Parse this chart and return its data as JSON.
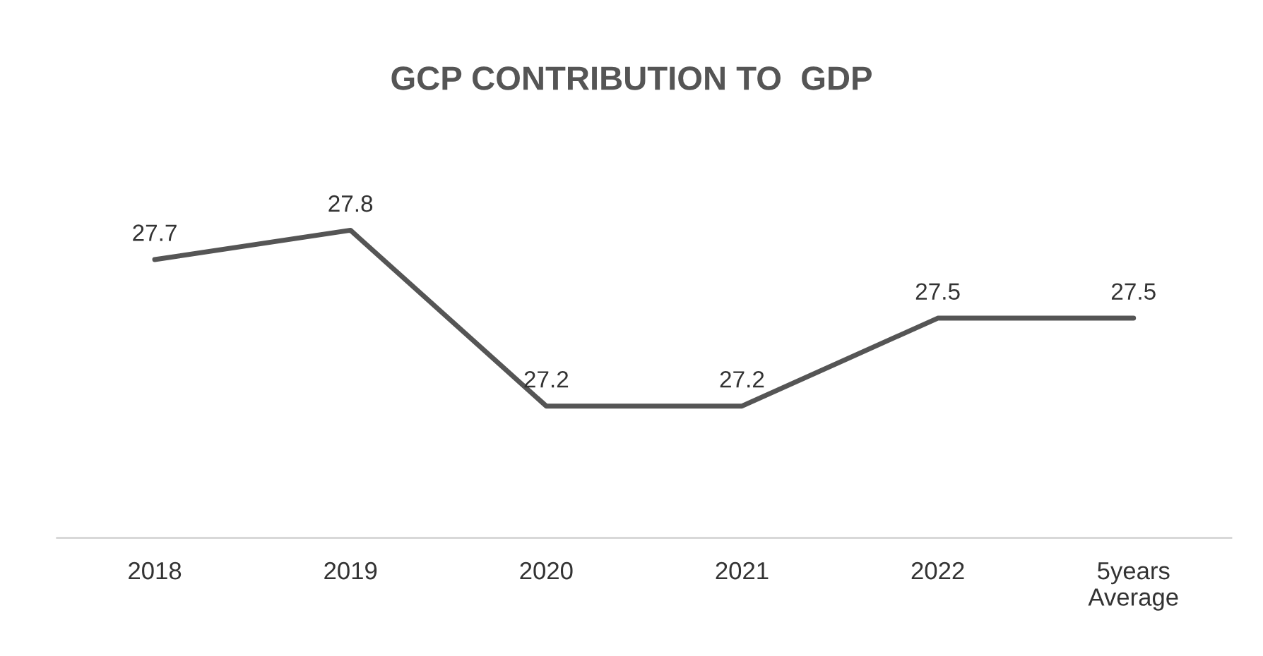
{
  "chart_data": {
    "type": "line",
    "title": "GCP CONTRIBUTION TO  GDP",
    "categories": [
      "2018",
      "2019",
      "2020",
      "2021",
      "2022",
      "5years\nAverage"
    ],
    "series": [
      {
        "color": "#555555",
        "values": [
          27.7,
          27.8,
          27.2,
          27.2,
          27.5,
          27.5
        ]
      }
    ],
    "data_labels": true,
    "grid": false,
    "legend": false,
    "line_style": "solid"
  }
}
